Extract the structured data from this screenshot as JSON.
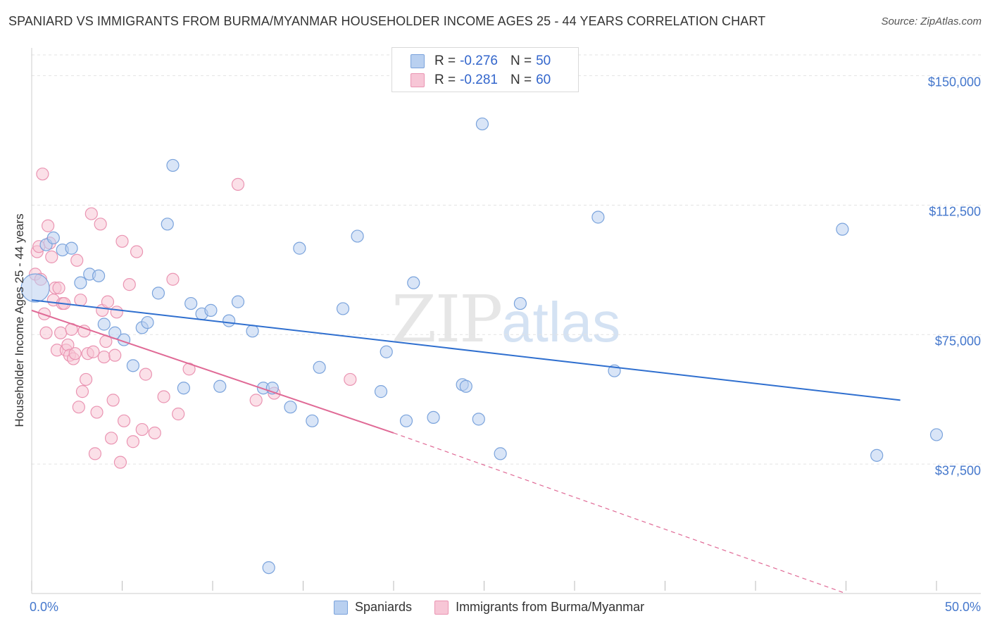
{
  "header": {
    "title": "SPANIARD VS IMMIGRANTS FROM BURMA/MYANMAR HOUSEHOLDER INCOME AGES 25 - 44 YEARS CORRELATION CHART",
    "source": "Source: ZipAtlas.com"
  },
  "watermark": {
    "zip": "ZIP",
    "atlas": "atlas"
  },
  "legend": {
    "series1": {
      "r_label": "R =",
      "r_value": "-0.276",
      "n_label": "N =",
      "n_value": "50"
    },
    "series2": {
      "r_label": "R =",
      "r_value": "-0.281",
      "n_label": "N =",
      "n_value": "60"
    },
    "bottom": [
      "Spaniards",
      "Immigrants from Burma/Myanmar"
    ]
  },
  "colors": {
    "blue_fill": "#b9d0f0",
    "blue_stroke": "#7aa3dc",
    "blue_line": "#2f6fcf",
    "pink_fill": "#f7c6d6",
    "pink_stroke": "#ea94b2",
    "pink_line": "#e06a96",
    "grid": "#e3e3e3",
    "axis_text": "#4477cc"
  },
  "chart_data": {
    "type": "scatter",
    "title": "SPANIARD VS IMMIGRANTS FROM BURMA/MYANMAR HOUSEHOLDER INCOME AGES 25 - 44 YEARS CORRELATION CHART",
    "xlabel": "",
    "ylabel": "Householder Income Ages 25 - 44 years",
    "xlim": [
      0,
      50
    ],
    "ylim": [
      0,
      156000
    ],
    "x_tick_labels": [
      "0.0%",
      "50.0%"
    ],
    "y_ticks": [
      37500,
      75000,
      112500,
      150000
    ],
    "y_tick_labels": [
      "$37,500",
      "$75,000",
      "$112,500",
      "$150,000"
    ],
    "series": [
      {
        "name": "Spaniards",
        "R": -0.276,
        "N": 50,
        "trend": {
          "x": [
            0,
            48
          ],
          "y": [
            85000,
            56000
          ],
          "dashed_to": null
        },
        "points": [
          [
            0.2,
            88500,
            22
          ],
          [
            0.8,
            101000,
            12
          ],
          [
            1.2,
            103000,
            12
          ],
          [
            1.7,
            99500,
            12
          ],
          [
            2.2,
            100000,
            12
          ],
          [
            2.7,
            90000,
            12
          ],
          [
            3.2,
            92500,
            12
          ],
          [
            3.7,
            92000,
            12
          ],
          [
            4.0,
            78000,
            12
          ],
          [
            4.6,
            75500,
            12
          ],
          [
            5.1,
            73500,
            12
          ],
          [
            5.6,
            66000,
            12
          ],
          [
            6.1,
            77000,
            12
          ],
          [
            6.4,
            78500,
            12
          ],
          [
            7.0,
            87000,
            12
          ],
          [
            7.5,
            107000,
            12
          ],
          [
            7.8,
            124000,
            12
          ],
          [
            8.4,
            59500,
            12
          ],
          [
            8.8,
            84000,
            12
          ],
          [
            9.4,
            81000,
            12
          ],
          [
            9.9,
            82000,
            12
          ],
          [
            10.4,
            60000,
            12
          ],
          [
            10.9,
            79000,
            12
          ],
          [
            11.4,
            84500,
            12
          ],
          [
            12.2,
            76000,
            12
          ],
          [
            12.8,
            59500,
            12
          ],
          [
            13.1,
            7500,
            12
          ],
          [
            13.3,
            59500,
            12
          ],
          [
            14.3,
            54000,
            12
          ],
          [
            14.8,
            100000,
            12
          ],
          [
            15.5,
            50000,
            12
          ],
          [
            15.9,
            65500,
            12
          ],
          [
            17.2,
            82500,
            12
          ],
          [
            18.0,
            103500,
            12
          ],
          [
            19.3,
            58500,
            12
          ],
          [
            19.6,
            70000,
            12
          ],
          [
            20.7,
            50000,
            12
          ],
          [
            21.1,
            90000,
            12
          ],
          [
            22.2,
            51000,
            12
          ],
          [
            23.8,
            60500,
            12
          ],
          [
            24.0,
            60000,
            12
          ],
          [
            24.7,
            50500,
            12
          ],
          [
            24.9,
            136000,
            12
          ],
          [
            25.9,
            40500,
            12
          ],
          [
            27.0,
            84000,
            12
          ],
          [
            31.3,
            109000,
            12
          ],
          [
            32.2,
            64500,
            12
          ],
          [
            44.8,
            105500,
            12
          ],
          [
            46.7,
            40000,
            12
          ],
          [
            50.0,
            46000,
            12
          ]
        ]
      },
      {
        "name": "Immigrants from Burma/Myanmar",
        "R": -0.281,
        "N": 60,
        "trend": {
          "x": [
            0,
            20
          ],
          "y": [
            82000,
            46500
          ],
          "dashed_to": [
            45,
            0
          ]
        },
        "points": [
          [
            0.2,
            92500,
            12
          ],
          [
            0.3,
            99000,
            12
          ],
          [
            0.4,
            100500,
            12
          ],
          [
            0.5,
            91000,
            12
          ],
          [
            0.6,
            121500,
            12
          ],
          [
            0.7,
            81000,
            12
          ],
          [
            0.8,
            75500,
            12
          ],
          [
            0.9,
            106500,
            12
          ],
          [
            1.0,
            101500,
            12
          ],
          [
            1.1,
            97500,
            12
          ],
          [
            1.2,
            85000,
            12
          ],
          [
            1.3,
            88500,
            12
          ],
          [
            1.4,
            70500,
            12
          ],
          [
            1.5,
            88500,
            12
          ],
          [
            1.6,
            75500,
            12
          ],
          [
            1.7,
            84000,
            12
          ],
          [
            1.8,
            84000,
            12
          ],
          [
            1.9,
            70500,
            12
          ],
          [
            2.0,
            72000,
            12
          ],
          [
            2.1,
            69000,
            12
          ],
          [
            2.2,
            76500,
            12
          ],
          [
            2.3,
            68000,
            12
          ],
          [
            2.4,
            69500,
            12
          ],
          [
            2.5,
            96500,
            12
          ],
          [
            2.6,
            54000,
            12
          ],
          [
            2.7,
            85000,
            12
          ],
          [
            2.8,
            58500,
            12
          ],
          [
            2.9,
            76000,
            12
          ],
          [
            3.0,
            62000,
            12
          ],
          [
            3.1,
            69500,
            12
          ],
          [
            3.3,
            110000,
            12
          ],
          [
            3.4,
            70000,
            12
          ],
          [
            3.5,
            40500,
            12
          ],
          [
            3.6,
            52500,
            12
          ],
          [
            3.8,
            107000,
            12
          ],
          [
            3.9,
            82000,
            12
          ],
          [
            4.0,
            68500,
            12
          ],
          [
            4.1,
            73000,
            12
          ],
          [
            4.2,
            84500,
            12
          ],
          [
            4.4,
            45000,
            12
          ],
          [
            4.5,
            56000,
            12
          ],
          [
            4.6,
            69000,
            12
          ],
          [
            4.7,
            81500,
            12
          ],
          [
            4.9,
            38000,
            12
          ],
          [
            5.0,
            102000,
            12
          ],
          [
            5.1,
            50000,
            12
          ],
          [
            5.4,
            89500,
            12
          ],
          [
            5.6,
            44000,
            12
          ],
          [
            5.8,
            99000,
            12
          ],
          [
            6.1,
            47500,
            12
          ],
          [
            6.3,
            63500,
            12
          ],
          [
            6.8,
            46500,
            12
          ],
          [
            7.3,
            57000,
            12
          ],
          [
            7.8,
            91000,
            12
          ],
          [
            8.1,
            52000,
            12
          ],
          [
            8.7,
            65000,
            12
          ],
          [
            11.4,
            118500,
            12
          ],
          [
            12.4,
            56000,
            12
          ],
          [
            13.4,
            58000,
            12
          ],
          [
            17.6,
            62000,
            12
          ]
        ]
      }
    ]
  }
}
